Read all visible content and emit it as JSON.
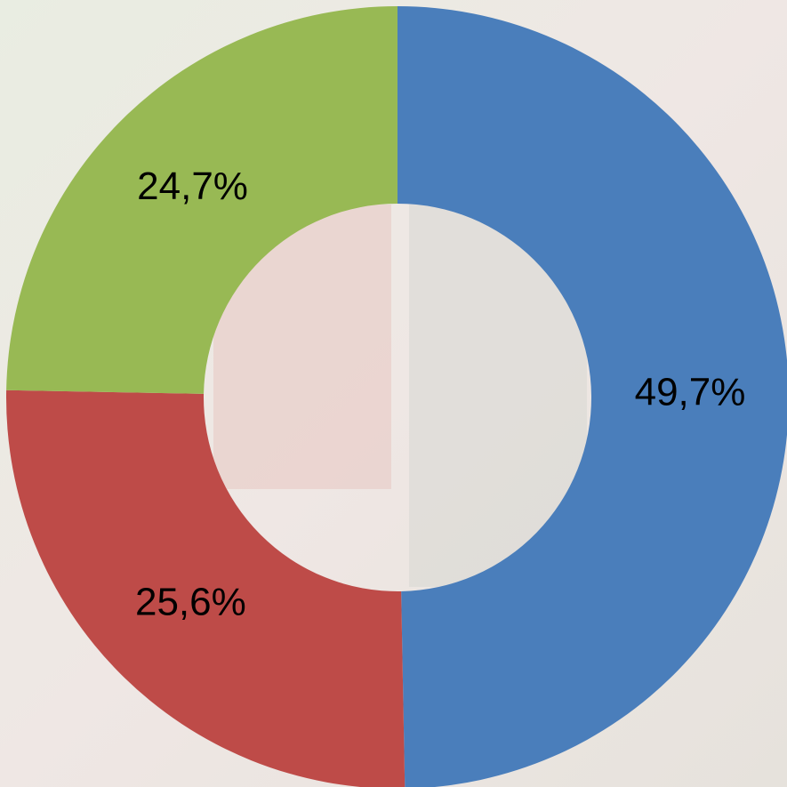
{
  "chart_data": {
    "type": "donut",
    "values": [
      49.7,
      25.6,
      24.7
    ],
    "value_labels": [
      "49,7%",
      "25,6%",
      "24,7%"
    ],
    "colors": [
      "#4a7ebb",
      "#be4b48",
      "#98b954"
    ]
  }
}
